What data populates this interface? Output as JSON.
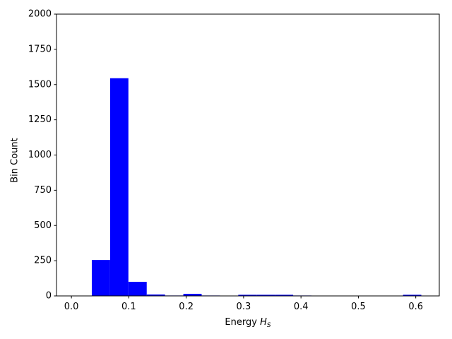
{
  "chart_data": {
    "type": "histogram",
    "xlabel": {
      "text": "Energy",
      "symbol": "H",
      "subscript": "S"
    },
    "ylabel": "Bin Count",
    "bins": [
      0.0355,
      0.0674,
      0.0993,
      0.1312,
      0.1631,
      0.195,
      0.2269,
      0.2588,
      0.2907,
      0.3226,
      0.3545,
      0.3864,
      0.4183,
      0.4502,
      0.4821,
      0.514,
      0.5459,
      0.5778,
      0.6097
    ],
    "values": [
      255,
      1545,
      100,
      10,
      3,
      15,
      3,
      2,
      8,
      8,
      8,
      3,
      2,
      2,
      2,
      2,
      2,
      8
    ],
    "color": "#0000ff",
    "xlim": [
      -0.026,
      0.641
    ],
    "ylim": [
      0,
      2000
    ],
    "xticks": [
      {
        "value": 0,
        "label": "0.0"
      },
      0.1,
      0.2,
      0.3,
      0.4,
      0.5,
      0.6
    ],
    "yticks": [
      0,
      250,
      500,
      750,
      1000,
      1250,
      1500,
      1750,
      2000
    ],
    "grid": false
  }
}
